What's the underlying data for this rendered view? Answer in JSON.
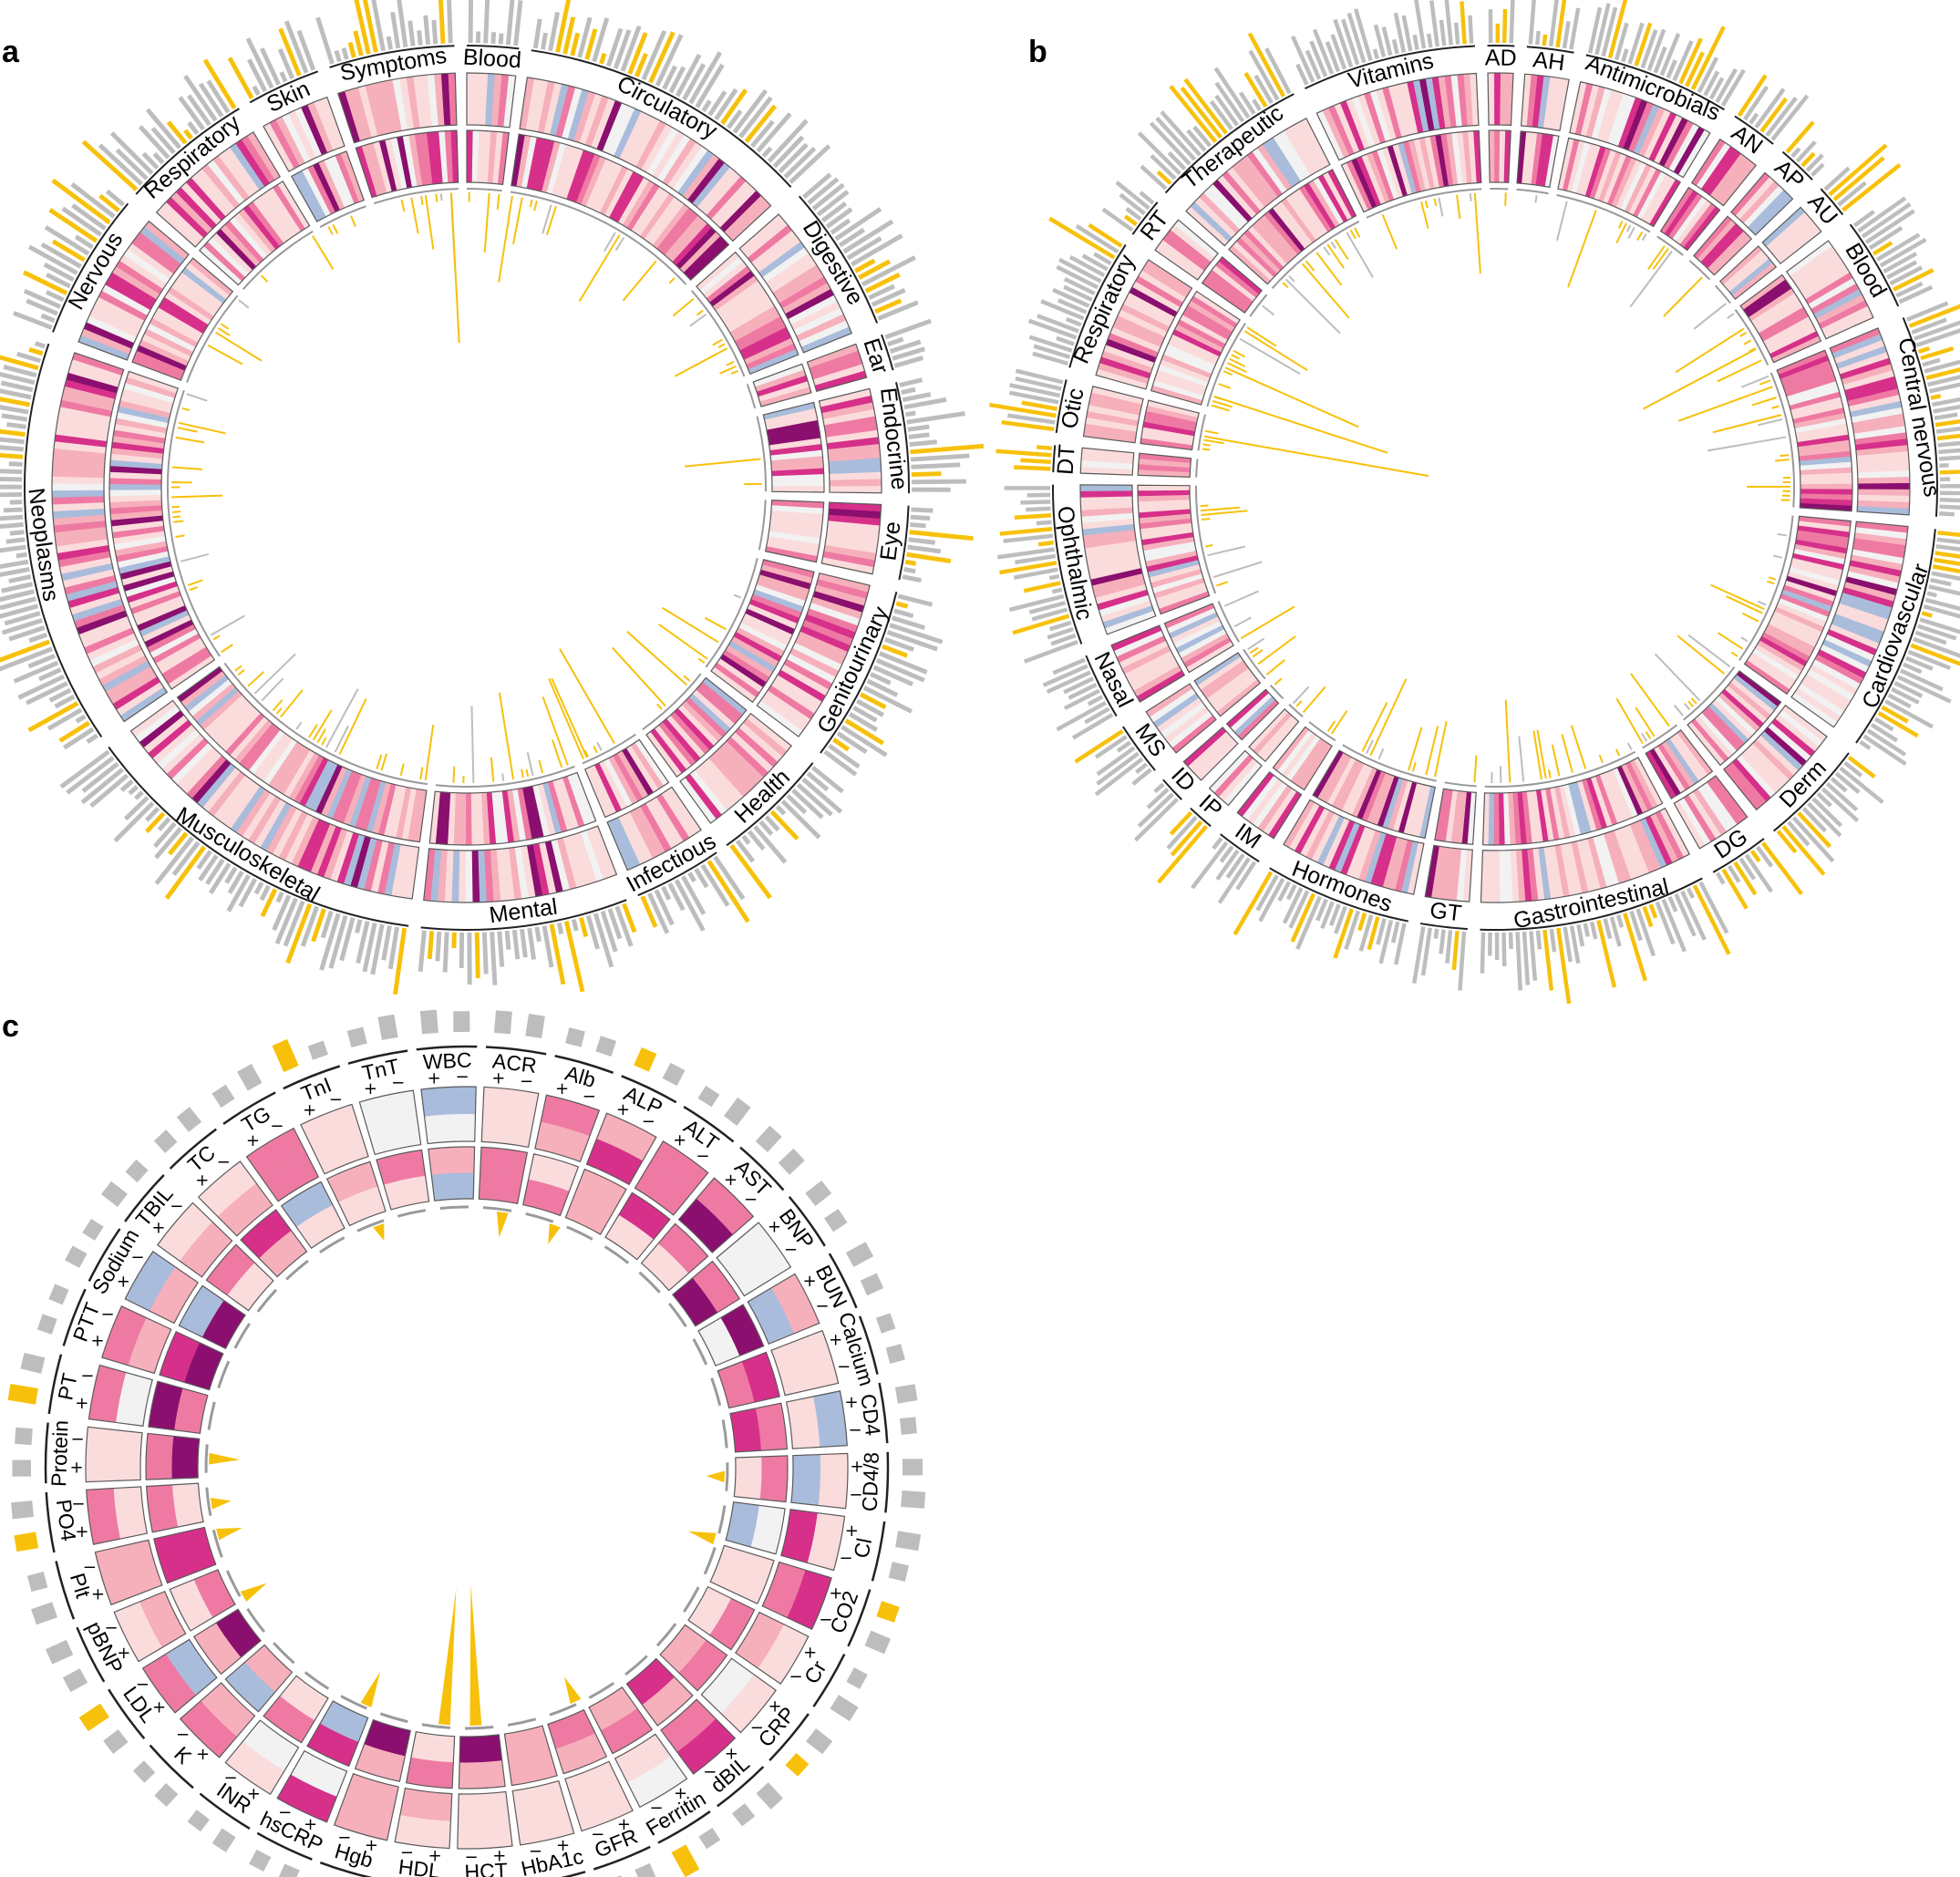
{
  "colors": {
    "gray_bar": "#bdbdbd",
    "highlight": "#f7c10b",
    "outline": "#5a5a5a",
    "neutral": "#f2f2f2",
    "blue": "#a9bcdb",
    "pink_light": "#fbdcdc",
    "pink_mid": "#f6b0bb",
    "pink": "#ee7aa3",
    "magenta": "#d6308a",
    "purple": "#8a0f6e"
  },
  "chart_data": [
    {
      "panel": "a",
      "type": "circular-heatmap",
      "title": "",
      "segments_order_clockwise_from_top": [
        "Blood",
        "Circulatory",
        "Digestive",
        "Ear",
        "Endocrine",
        "Eye",
        "Genitourinary",
        "Health",
        "Infectious",
        "Mental",
        "Musculoskeletal",
        "Neoplasms",
        "Nervous",
        "Respiratory",
        "Skin",
        "Symptoms"
      ],
      "segment_sizes": [
        7,
        40,
        20,
        5,
        15,
        10,
        24,
        16,
        12,
        28,
        48,
        55,
        20,
        18,
        10,
        17
      ],
      "heat_levels_note": "cell colours range from blue (-1) through light grey (0) to pink and dark purple (+4)",
      "spike_max_value": 1.0
    },
    {
      "panel": "b",
      "type": "circular-heatmap",
      "title": "",
      "segments_order_clockwise_from_top": [
        "AD",
        "AH",
        "Antimicrobials",
        "AN",
        "AP",
        "AU",
        "Blood",
        "Central nervous",
        "Cardiovascular",
        "Derm",
        "DG",
        "Gastrointestinal",
        "GT",
        "Hormones",
        "IM",
        "IP",
        "ID",
        "MS",
        "Nasal",
        "Ophthalmic",
        "DT",
        "Otic",
        "Respiratory",
        "RT",
        "Therapeutic",
        "Vitamins"
      ],
      "segment_sizes": [
        4,
        7,
        22,
        7,
        6,
        5,
        14,
        30,
        34,
        16,
        9,
        34,
        7,
        22,
        7,
        4,
        4,
        8,
        10,
        24,
        4,
        8,
        20,
        6,
        24,
        26
      ],
      "spike_max_value": 1.0
    },
    {
      "panel": "c",
      "type": "circular-heatmap",
      "title": "",
      "segments_order_clockwise_from_top": [
        "ACR",
        "Alb",
        "ALP",
        "ALT",
        "AST",
        "BNP",
        "BUN",
        "Calcium",
        "CD4",
        "CD4/8",
        "Cl",
        "CO2",
        "Cr",
        "CRP",
        "dBIL",
        "Ferritin",
        "GFR",
        "HbA1c",
        "HCT",
        "HDL",
        "Hgb",
        "hsCRP",
        "INR",
        "K",
        "LDL",
        "pBNP",
        "Plt",
        "PO4",
        "Protein",
        "PT",
        "PTT",
        "Sodium",
        "TBIL",
        "TC",
        "TG",
        "TnI",
        "TnT",
        "WBC"
      ],
      "sign_glyphs": [
        "+",
        "−"
      ],
      "spike_max_value": 1.0
    }
  ],
  "panel_labels": {
    "a": "a",
    "b": "b",
    "c": "c"
  },
  "panel_a_labels": {
    "blood": "Blood",
    "circulatory": "Circulatory",
    "digestive": "Digestive",
    "ear": "Ear",
    "endocrine": "Endocrine",
    "eye": "Eye",
    "genitourinary": "Genitourinary",
    "health": "Health",
    "infectious": "Infectious",
    "mental": "Mental",
    "musculoskeletal": "Musculoskeletal",
    "neoplasms": "Neoplasms",
    "nervous": "Nervous",
    "respiratory": "Respiratory",
    "skin": "Skin",
    "symptoms": "Symptoms"
  },
  "panel_b_labels": {
    "ad": "AD",
    "ah": "AH",
    "antimicrobials": "Antimicrobials",
    "an": "AN",
    "ap": "AP",
    "au": "AU",
    "blood": "Blood",
    "central_nervous": "Central nervous",
    "cardiovascular": "Cardiovascular",
    "derm": "Derm",
    "dg": "DG",
    "gastrointestinal": "Gastrointestinal",
    "gt": "GT",
    "hormones": "Hormones",
    "im": "IM",
    "ip": "IP",
    "id": "ID",
    "ms": "MS",
    "nasal": "Nasal",
    "ophthalmic": "Ophthalmic",
    "dt": "DT",
    "otic": "Otic",
    "respiratory": "Respiratory",
    "rt": "RT",
    "therapeutic": "Therapeutic",
    "vitamins": "Vitamins"
  },
  "panel_c_labels": {
    "acr": "ACR",
    "alb": "Alb",
    "alp": "ALP",
    "alt": "ALT",
    "ast": "AST",
    "bnp": "BNP",
    "bun": "BUN",
    "calcium": "Calcium",
    "cd4": "CD4",
    "cd48": "CD4/8",
    "cl": "Cl",
    "co2": "CO2",
    "cr": "Cr",
    "crp": "CRP",
    "dbil": "dBIL",
    "ferritin": "Ferritin",
    "gfr": "GFR",
    "hba1c": "HbA1c",
    "hct": "HCT",
    "hdl": "HDL",
    "hgb": "Hgb",
    "hscrp": "hsCRP",
    "inr": "INR",
    "k": "K",
    "ldl": "LDL",
    "pbnp": "pBNP",
    "plt": "Plt",
    "po4": "PO4",
    "protein": "Protein",
    "pt": "PT",
    "ptt": "PTT",
    "sodium": "Sodium",
    "tbil": "TBIL",
    "tc": "TC",
    "tg": "TG",
    "tni": "TnI",
    "tnt": "TnT",
    "wbc": "WBC"
  },
  "sign_plus": "+",
  "sign_minus": "−"
}
